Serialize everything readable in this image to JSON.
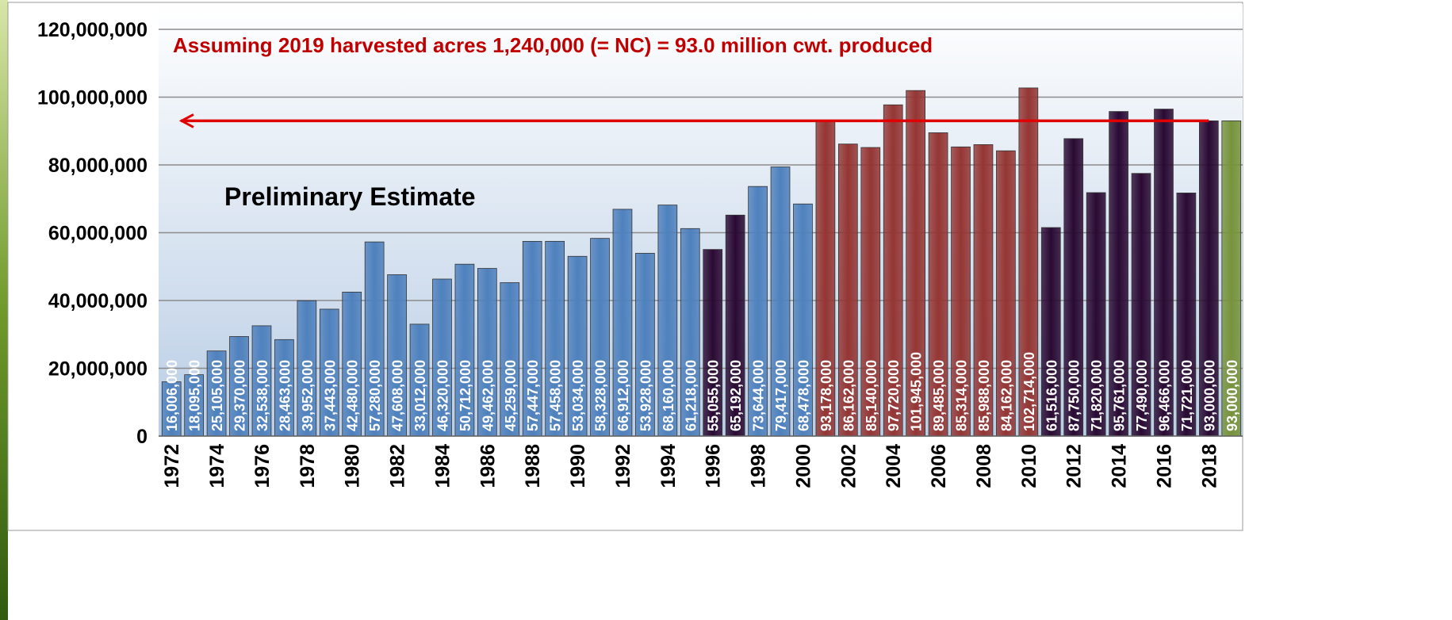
{
  "chart_data": {
    "type": "bar",
    "annotations": [
      "Assuming 2019 harvested acres 1,240,000 (= NC) = 93.0  million cwt. produced",
      "Preliminary Estimate"
    ],
    "categories": [
      "1972",
      null,
      "1974",
      null,
      "1976",
      null,
      "1978",
      null,
      "1980",
      null,
      "1982",
      null,
      "1984",
      null,
      "1986",
      null,
      "1988",
      null,
      "1990",
      null,
      "1992",
      null,
      "1994",
      null,
      "1996",
      null,
      "1998",
      null,
      "2000",
      null,
      "2002",
      null,
      "2004",
      null,
      "2006",
      null,
      "2008",
      null,
      "2010",
      null,
      "2012",
      null,
      "2014",
      null,
      "2016",
      null,
      "2018",
      null
    ],
    "values": [
      16006000,
      18095000,
      25105000,
      29370000,
      32538000,
      28463000,
      39952000,
      37443000,
      42480000,
      57280000,
      47608000,
      33012000,
      46320000,
      50712000,
      49462000,
      45259000,
      57447000,
      57458000,
      53034000,
      58328000,
      66912000,
      53928000,
      68160000,
      61218000,
      55055000,
      65192000,
      73644000,
      79417000,
      68478000,
      93178000,
      86162000,
      85140000,
      97720000,
      101945000,
      89485000,
      85314000,
      85988000,
      84162000,
      102714000,
      61516000,
      87750000,
      71820000,
      95761000,
      77490000,
      96466000,
      71721000,
      93000000,
      93000000
    ],
    "value_labels": [
      "16,006,000",
      "18,095,000",
      "25,105,000",
      "29,370,000",
      "32,538,000",
      "28,463,000",
      "39,952,000",
      "37,443,000",
      "42,480,000",
      "57,280,000",
      "47,608,000",
      "33,012,000",
      "46,320,000",
      "50,712,000",
      "49,462,000",
      "45,259,000",
      "57,447,000",
      "57,458,000",
      "53,034,000",
      "58,328,000",
      "66,912,000",
      "53,928,000",
      "68,160,000",
      "61,218,000",
      "55,055,000",
      "65,192,000",
      "73,644,000",
      "79,417,000",
      "68,478,000",
      "93,178,000",
      "86,162,000",
      "85,140,000",
      "97,720,000",
      "101,945,000",
      "89,485,000",
      "85,314,000",
      "85,988,000",
      "84,162,000",
      "102,714,000",
      "61,516,000",
      "87,750,000",
      "71,820,000",
      "95,761,000",
      "77,490,000",
      "96,466,000",
      "71,721,000",
      "93,000,000",
      "93,000,000"
    ],
    "colors": [
      "#4f81bd",
      "#4f81bd",
      "#4f81bd",
      "#4f81bd",
      "#4f81bd",
      "#4f81bd",
      "#4f81bd",
      "#4f81bd",
      "#4f81bd",
      "#4f81bd",
      "#4f81bd",
      "#4f81bd",
      "#4f81bd",
      "#4f81bd",
      "#4f81bd",
      "#4f81bd",
      "#4f81bd",
      "#4f81bd",
      "#4f81bd",
      "#4f81bd",
      "#4f81bd",
      "#4f81bd",
      "#4f81bd",
      "#4f81bd",
      "#2a0a33",
      "#2a0a33",
      "#4f81bd",
      "#4f81bd",
      "#4f81bd",
      "#943634",
      "#943634",
      "#943634",
      "#943634",
      "#943634",
      "#943634",
      "#943634",
      "#943634",
      "#943634",
      "#943634",
      "#2a0a33",
      "#2a0a33",
      "#2a0a33",
      "#2a0a33",
      "#2a0a33",
      "#2a0a33",
      "#2a0a33",
      "#2a0a33",
      "#77933c"
    ],
    "reference_line": {
      "value": 93000000,
      "color": "#e00000"
    },
    "ylim": [
      0,
      120000000
    ],
    "yticks": [
      0,
      {
        "value": 20000000,
        "label": "20,000,000"
      },
      {
        "value": 40000000,
        "label": "40,000,000"
      },
      {
        "value": 60000000,
        "label": "60,000,000"
      },
      {
        "value": 80000000,
        "label": "80,000,000"
      },
      {
        "value": 100000000,
        "label": "100,000,000"
      },
      {
        "value": 120000000,
        "label": "120,000,000"
      }
    ],
    "grid": true
  }
}
